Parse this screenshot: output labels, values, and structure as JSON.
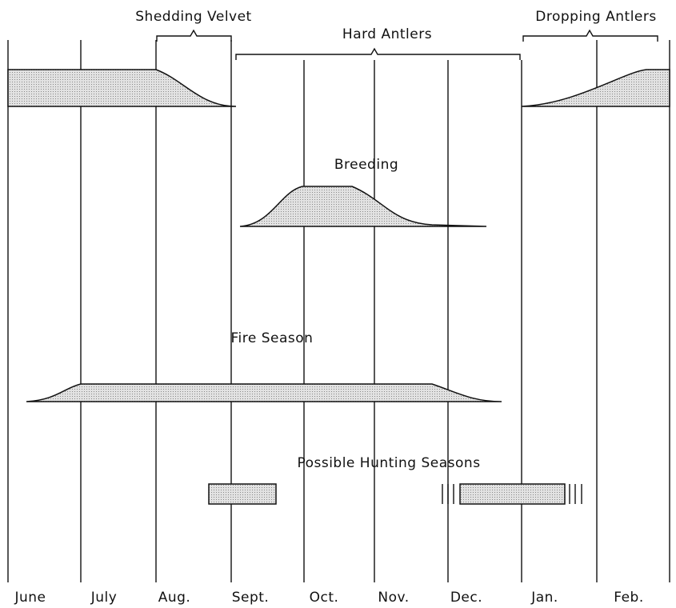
{
  "labels": {
    "shedding_velvet": "Shedding Velvet",
    "hard_antlers": "Hard Antlers",
    "dropping_antlers": "Dropping Antlers",
    "breeding": "Breeding",
    "fire_season": "Fire Season",
    "hunting": "Possible Hunting Seasons"
  },
  "months": [
    "June",
    "July",
    "Aug.",
    "Sept.",
    "Oct.",
    "Nov.",
    "Dec.",
    "Jan.",
    "Feb."
  ]
}
